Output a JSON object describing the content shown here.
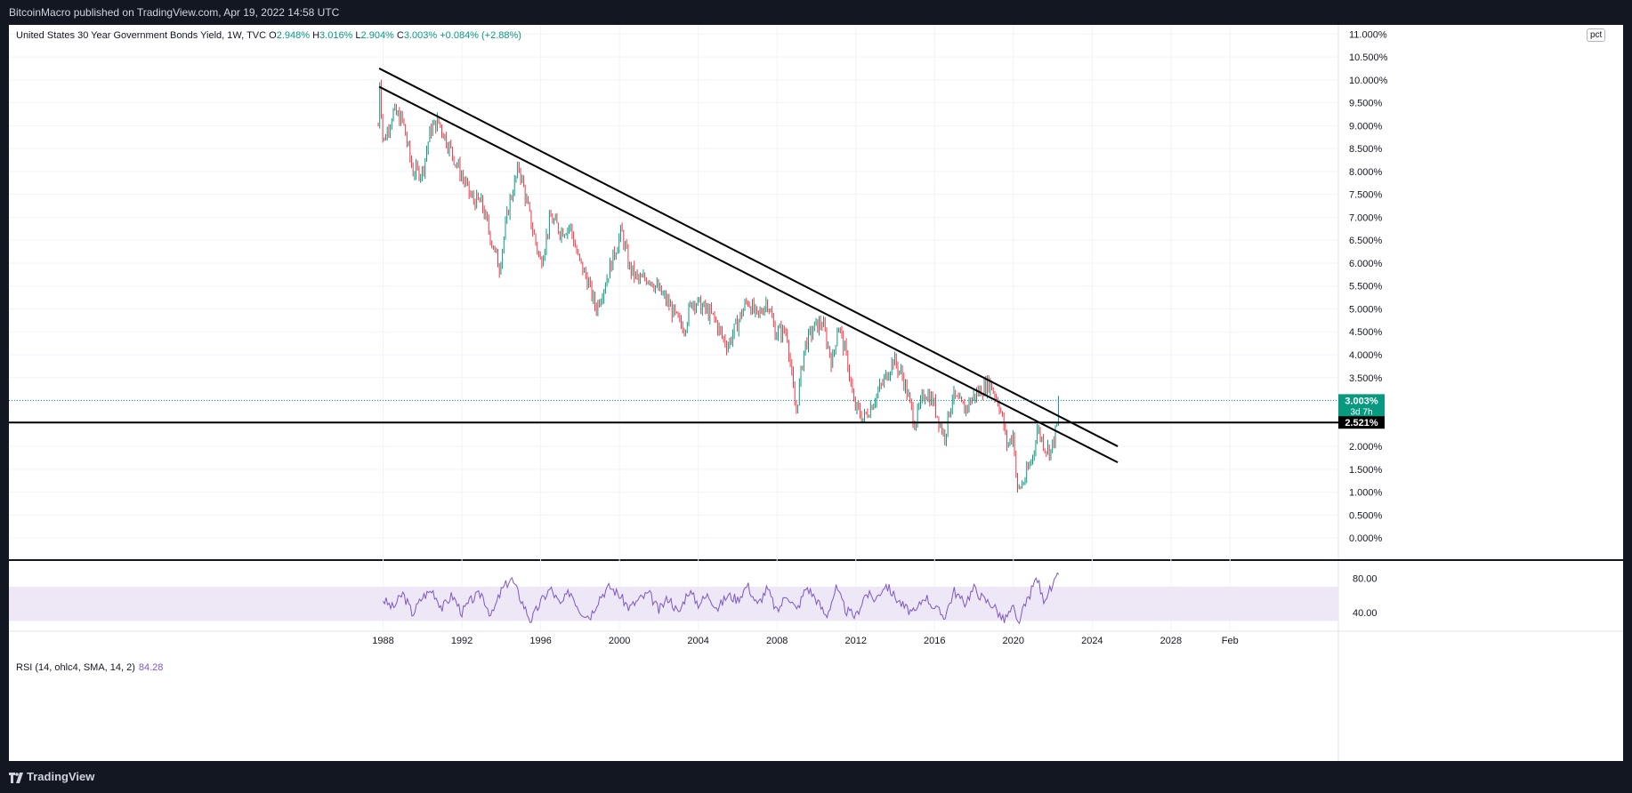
{
  "header": {
    "publisher_line": "BitcoinMacro published on TradingView.com, Apr 19, 2022 14:58 UTC"
  },
  "legend": {
    "symbol": "United States 30 Year Government Bonds Yield, 1W, TVC",
    "o_label": "O",
    "o_value": "2.948%",
    "h_label": "H",
    "h_value": "3.016%",
    "l_label": "L",
    "l_value": "2.904%",
    "c_label": "C",
    "c_value": "3.003%",
    "change": "+0.084% (+2.88%)"
  },
  "scale_button": "pct",
  "price_tag": {
    "value": "3.003%",
    "countdown": "3d 7h"
  },
  "hline_tag": "2.521%",
  "rsi": {
    "label": "RSI (14, ohlc4, SMA, 14, 2)",
    "value": "84.28",
    "ticks": [
      "80.00",
      "40.00"
    ]
  },
  "footer": {
    "brand": "TradingView"
  },
  "colors": {
    "up": "#089981",
    "down": "#f23645",
    "rsi": "#7e57c2",
    "rsi_band": "#ede7f6",
    "line": "#000000",
    "bg_dark": "#131722"
  },
  "chart_data": {
    "type": "candlestick",
    "title": "United States 30 Year Government Bonds Yield, 1W, TVC",
    "xlabel": "",
    "ylabel": "",
    "x_ticks": [
      "1988",
      "1992",
      "1996",
      "2000",
      "2004",
      "2008",
      "2012",
      "2016",
      "2020",
      "2024",
      "2028",
      "Feb"
    ],
    "x_tick_values": [
      1988,
      1992,
      1996,
      2000,
      2004,
      2008,
      2012,
      2016,
      2020,
      2024,
      2028,
      2031
    ],
    "xlim": [
      1969.0,
      2036.5
    ],
    "y_ticks": [
      "0.000%",
      "0.500%",
      "1.000%",
      "1.500%",
      "2.000%",
      "2.500%",
      "3.000%",
      "3.500%",
      "4.000%",
      "4.500%",
      "5.000%",
      "5.500%",
      "6.000%",
      "6.500%",
      "7.000%",
      "7.500%",
      "8.000%",
      "8.500%",
      "9.000%",
      "9.500%",
      "10.000%",
      "10.500%",
      "11.000%"
    ],
    "ylim": [
      -0.25,
      11.2
    ],
    "price_series": {
      "name": "United States 30 Year Government Bonds Yield",
      "points": [
        [
          1987.75,
          9.0
        ],
        [
          1987.8,
          10.2
        ],
        [
          1988.0,
          8.6
        ],
        [
          1988.5,
          9.3
        ],
        [
          1989.0,
          9.1
        ],
        [
          1989.5,
          8.0
        ],
        [
          1990.0,
          8.0
        ],
        [
          1990.4,
          8.9
        ],
        [
          1990.8,
          9.1
        ],
        [
          1991.5,
          8.4
        ],
        [
          1992.0,
          7.9
        ],
        [
          1992.5,
          7.4
        ],
        [
          1993.0,
          7.3
        ],
        [
          1993.5,
          6.5
        ],
        [
          1993.9,
          5.9
        ],
        [
          1994.4,
          7.3
        ],
        [
          1994.9,
          8.1
        ],
        [
          1995.5,
          6.9
        ],
        [
          1996.0,
          6.0
        ],
        [
          1996.5,
          7.0
        ],
        [
          1997.0,
          6.7
        ],
        [
          1997.5,
          6.8
        ],
        [
          1997.9,
          6.1
        ],
        [
          1998.4,
          5.6
        ],
        [
          1998.8,
          5.0
        ],
        [
          1999.3,
          5.6
        ],
        [
          1999.8,
          6.3
        ],
        [
          2000.1,
          6.7
        ],
        [
          2000.5,
          5.9
        ],
        [
          2001.0,
          5.6
        ],
        [
          2001.5,
          5.7
        ],
        [
          2002.0,
          5.4
        ],
        [
          2002.5,
          5.1
        ],
        [
          2003.0,
          4.7
        ],
        [
          2003.3,
          4.6
        ],
        [
          2003.7,
          5.2
        ],
        [
          2004.3,
          5.0
        ],
        [
          2004.8,
          4.8
        ],
        [
          2005.2,
          4.4
        ],
        [
          2005.5,
          4.2
        ],
        [
          2006.0,
          4.7
        ],
        [
          2006.5,
          5.2
        ],
        [
          2007.0,
          4.8
        ],
        [
          2007.5,
          5.2
        ],
        [
          2007.9,
          4.5
        ],
        [
          2008.5,
          4.5
        ],
        [
          2008.95,
          2.7
        ],
        [
          2009.4,
          4.2
        ],
        [
          2009.9,
          4.6
        ],
        [
          2010.3,
          4.7
        ],
        [
          2010.8,
          3.8
        ],
        [
          2011.1,
          4.7
        ],
        [
          2011.6,
          3.8
        ],
        [
          2011.9,
          2.9
        ],
        [
          2012.4,
          2.6
        ],
        [
          2012.9,
          3.0
        ],
        [
          2013.4,
          3.4
        ],
        [
          2013.9,
          3.9
        ],
        [
          2014.4,
          3.5
        ],
        [
          2015.0,
          2.5
        ],
        [
          2015.5,
          3.2
        ],
        [
          2015.9,
          3.0
        ],
        [
          2016.5,
          2.2
        ],
        [
          2016.9,
          3.1
        ],
        [
          2017.5,
          2.8
        ],
        [
          2018.0,
          3.1
        ],
        [
          2018.8,
          3.4
        ],
        [
          2019.3,
          2.9
        ],
        [
          2019.7,
          2.0
        ],
        [
          2020.0,
          2.3
        ],
        [
          2020.2,
          1.0
        ],
        [
          2020.6,
          1.3
        ],
        [
          2021.0,
          1.8
        ],
        [
          2021.2,
          2.4
        ],
        [
          2021.6,
          2.0
        ],
        [
          2021.9,
          1.9
        ],
        [
          2022.2,
          2.4
        ],
        [
          2022.3,
          3.003
        ]
      ]
    },
    "trendlines": [
      {
        "start": [
          1987.8,
          10.25
        ],
        "end": [
          2025.3,
          2.0
        ]
      },
      {
        "start": [
          1987.8,
          9.85
        ],
        "end": [
          2025.3,
          1.65
        ]
      }
    ],
    "horizontal_line": 2.521,
    "last_close": 3.003,
    "rsi_series": {
      "name": "RSI (14, ohlc4, SMA, 14, 2)",
      "ylim": [
        20,
        100
      ],
      "band": [
        30,
        70
      ],
      "points": [
        [
          1988,
          55
        ],
        [
          1988.5,
          45
        ],
        [
          1989,
          62
        ],
        [
          1989.5,
          38
        ],
        [
          1990,
          58
        ],
        [
          1990.5,
          66
        ],
        [
          1991,
          45
        ],
        [
          1991.5,
          60
        ],
        [
          1992,
          40
        ],
        [
          1992.5,
          55
        ],
        [
          1993,
          62
        ],
        [
          1993.5,
          35
        ],
        [
          1994,
          65
        ],
        [
          1994.5,
          80
        ],
        [
          1995,
          55
        ],
        [
          1995.5,
          30
        ],
        [
          1996,
          52
        ],
        [
          1996.5,
          68
        ],
        [
          1997,
          48
        ],
        [
          1997.5,
          65
        ],
        [
          1998,
          42
        ],
        [
          1998.5,
          35
        ],
        [
          1999,
          58
        ],
        [
          1999.5,
          70
        ],
        [
          2000,
          60
        ],
        [
          2000.5,
          45
        ],
        [
          2001,
          55
        ],
        [
          2001.5,
          62
        ],
        [
          2002,
          42
        ],
        [
          2002.5,
          58
        ],
        [
          2003,
          38
        ],
        [
          2003.5,
          66
        ],
        [
          2004,
          50
        ],
        [
          2004.5,
          60
        ],
        [
          2005,
          45
        ],
        [
          2005.5,
          60
        ],
        [
          2006,
          55
        ],
        [
          2006.5,
          72
        ],
        [
          2007,
          48
        ],
        [
          2007.5,
          68
        ],
        [
          2008,
          40
        ],
        [
          2008.5,
          62
        ],
        [
          2009,
          42
        ],
        [
          2009.5,
          70
        ],
        [
          2010,
          55
        ],
        [
          2010.5,
          35
        ],
        [
          2011,
          68
        ],
        [
          2011.5,
          42
        ],
        [
          2012,
          35
        ],
        [
          2012.5,
          62
        ],
        [
          2013,
          55
        ],
        [
          2013.5,
          73
        ],
        [
          2014,
          58
        ],
        [
          2014.5,
          45
        ],
        [
          2015,
          38
        ],
        [
          2015.5,
          60
        ],
        [
          2016,
          45
        ],
        [
          2016.5,
          35
        ],
        [
          2017,
          65
        ],
        [
          2017.5,
          50
        ],
        [
          2018,
          68
        ],
        [
          2018.5,
          55
        ],
        [
          2019,
          48
        ],
        [
          2019.5,
          30
        ],
        [
          2020,
          45
        ],
        [
          2020.2,
          25
        ],
        [
          2020.5,
          42
        ],
        [
          2021,
          70
        ],
        [
          2021.2,
          82
        ],
        [
          2021.5,
          55
        ],
        [
          2022.0,
          70
        ],
        [
          2022.3,
          84.28
        ]
      ]
    }
  }
}
